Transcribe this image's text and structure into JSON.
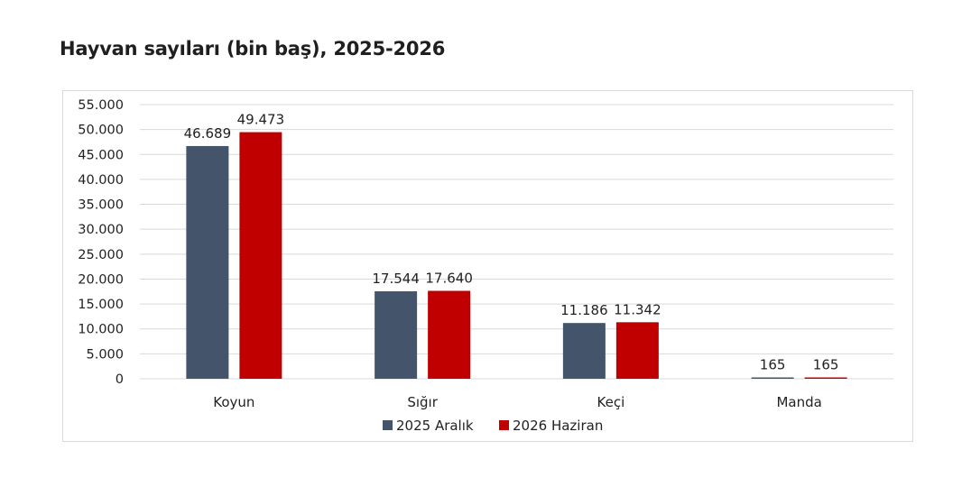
{
  "chart_data": {
    "type": "bar",
    "title": "Hayvan sayıları (bin baş), 2025-2026",
    "categories": [
      "Koyun",
      "Sığır",
      "Keçi",
      "Manda"
    ],
    "series": [
      {
        "name": "2025 Aralık",
        "color": "#44546a",
        "values": [
          46689,
          17544,
          11186,
          165
        ],
        "labels": [
          "46.689",
          "17.544",
          "11.186",
          "165"
        ]
      },
      {
        "name": "2026 Haziran",
        "color": "#c00000",
        "values": [
          49473,
          17640,
          11342,
          165
        ],
        "labels": [
          "49.473",
          "17.640",
          "11.342",
          "165"
        ]
      }
    ],
    "ylim": [
      0,
      55000
    ],
    "yticks": [
      0,
      5000,
      10000,
      15000,
      20000,
      25000,
      30000,
      35000,
      40000,
      45000,
      50000,
      55000
    ],
    "ytick_labels": [
      "0",
      "5.000",
      "10.000",
      "15.000",
      "20.000",
      "25.000",
      "30.000",
      "35.000",
      "40.000",
      "45.000",
      "50.000",
      "55.000"
    ],
    "grid": true,
    "legend": "bottom",
    "xlabel": "",
    "ylabel": ""
  }
}
